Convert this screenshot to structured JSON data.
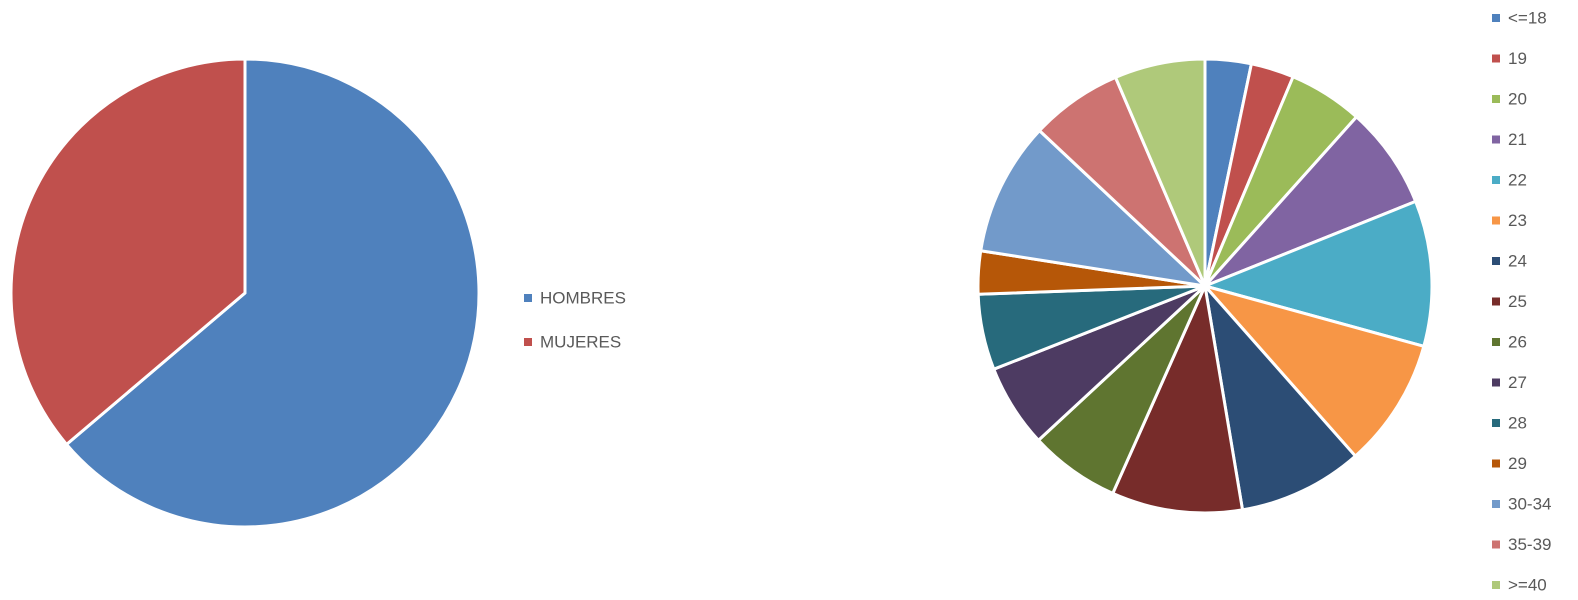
{
  "chart_data": [
    {
      "type": "pie",
      "categories": [
        "HOMBRES",
        "MUJERES"
      ],
      "values": [
        63.8,
        36.2
      ],
      "colors": [
        "#4F81BD",
        "#C0504D"
      ],
      "title": "",
      "legend_position": "right"
    },
    {
      "type": "pie",
      "categories": [
        "<=18",
        "19",
        "20",
        "21",
        "22",
        "23",
        "24",
        "25",
        "26",
        "27",
        "28",
        "29",
        "30-34",
        "35-39",
        ">=40"
      ],
      "values": [
        3.1,
        2.9,
        5.0,
        6.9,
        9.8,
        8.7,
        8.4,
        8.8,
        6.1,
        5.6,
        5.1,
        2.9,
        9.0,
        6.2,
        6.1
      ],
      "colors": [
        "#4F81BD",
        "#C0504D",
        "#9BBB59",
        "#8064A2",
        "#4BACC6",
        "#F79646",
        "#2C4D75",
        "#772C2A",
        "#5F7530",
        "#4D3B62",
        "#276A7C",
        "#B65708",
        "#729ACA",
        "#CD7371",
        "#AFC97A"
      ],
      "title": "",
      "legend_position": "right"
    }
  ]
}
